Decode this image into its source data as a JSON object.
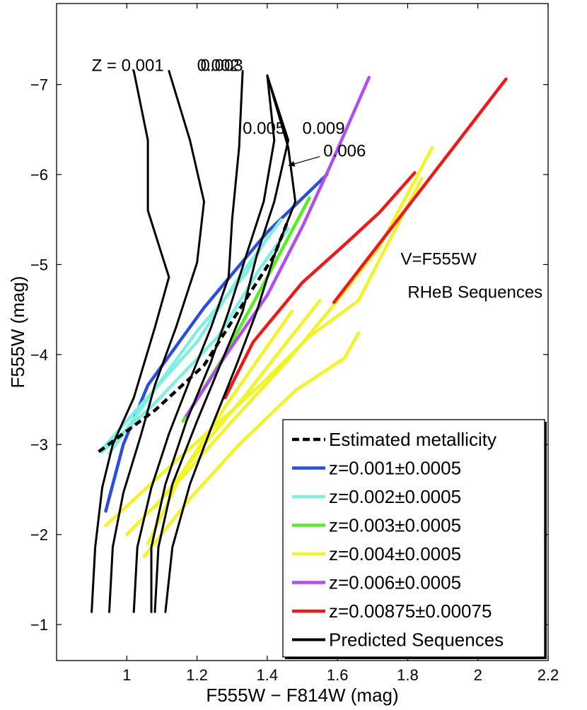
{
  "chart_data": {
    "type": "line",
    "title": "",
    "xlabel": "F555W − F814W (mag)",
    "ylabel": "F555W (mag)",
    "xlim": [
      0.8,
      2.2
    ],
    "ylim": [
      -0.6,
      -7.9
    ],
    "y_reversed": true,
    "grid": false,
    "x_ticks": [
      1,
      1.2,
      1.4,
      1.6,
      1.8,
      2,
      2.2
    ],
    "x_tick_labels": [
      "1",
      "1.2",
      "1.4",
      "1.6",
      "1.8",
      "2",
      "2.2"
    ],
    "y_ticks": [
      -1,
      -2,
      -3,
      -4,
      -5,
      -6,
      -7
    ],
    "y_tick_labels": [
      "−1",
      "−2",
      "−3",
      "−4",
      "−5",
      "−6",
      "−7"
    ],
    "legend_position": "bottom-right",
    "annotations": [
      {
        "text": "Z = 0.001",
        "x": 0.9,
        "y": -7.15
      },
      {
        "text": "0.002",
        "x": 1.2,
        "y": -7.15
      },
      {
        "text": "0.003",
        "x": 1.21,
        "y": -7.15
      },
      {
        "text": "0.005",
        "x": 1.33,
        "y": -6.45
      },
      {
        "text": "0.009",
        "x": 1.5,
        "y": -6.45
      },
      {
        "text": "0.006",
        "x": 1.56,
        "y": -6.2
      },
      {
        "text": "V=F555W",
        "x": 1.78,
        "y": -5.0
      },
      {
        "text": "RHeB Sequences",
        "x": 1.8,
        "y": -4.63
      }
    ],
    "arrow": {
      "from": [
        1.55,
        -6.2
      ],
      "to": [
        1.46,
        -6.1
      ]
    },
    "series": [
      {
        "name": "Z = 0.001",
        "role": "predicted",
        "color": "#000000",
        "dash": "solid",
        "show_in_legend": false,
        "points": [
          [
            0.9,
            -1.14
          ],
          [
            0.91,
            -1.86
          ],
          [
            0.93,
            -2.52
          ],
          [
            0.96,
            -3.0
          ],
          [
            1.02,
            -3.52
          ],
          [
            1.08,
            -4.3
          ],
          [
            1.12,
            -4.86
          ],
          [
            1.06,
            -5.6
          ],
          [
            1.06,
            -6.38
          ],
          [
            1.02,
            -7.15
          ]
        ]
      },
      {
        "name": "Z = 0.002",
        "role": "predicted",
        "color": "#000000",
        "dash": "solid",
        "show_in_legend": false,
        "points": [
          [
            0.95,
            -1.14
          ],
          [
            0.96,
            -1.86
          ],
          [
            0.99,
            -2.46
          ],
          [
            1.04,
            -3.1
          ],
          [
            1.08,
            -3.66
          ],
          [
            1.14,
            -4.3
          ],
          [
            1.2,
            -5.02
          ],
          [
            1.22,
            -5.7
          ],
          [
            1.18,
            -6.38
          ],
          [
            1.12,
            -7.15
          ]
        ]
      },
      {
        "name": "Z = 0.003",
        "role": "predicted",
        "color": "#000000",
        "dash": "solid",
        "show_in_legend": false,
        "points": [
          [
            1.02,
            -1.14
          ],
          [
            1.03,
            -1.86
          ],
          [
            1.07,
            -2.52
          ],
          [
            1.12,
            -3.12
          ],
          [
            1.18,
            -3.72
          ],
          [
            1.24,
            -4.3
          ],
          [
            1.29,
            -4.86
          ],
          [
            1.3,
            -5.5
          ],
          [
            1.32,
            -6.3
          ],
          [
            1.33,
            -7.15
          ]
        ]
      },
      {
        "name": "Z = 0.005",
        "role": "predicted",
        "color": "#000000",
        "dash": "solid",
        "show_in_legend": false,
        "points": [
          [
            1.07,
            -1.14
          ],
          [
            1.07,
            -1.86
          ],
          [
            1.11,
            -2.56
          ],
          [
            1.17,
            -3.26
          ],
          [
            1.24,
            -3.92
          ],
          [
            1.29,
            -4.48
          ],
          [
            1.34,
            -5.1
          ],
          [
            1.39,
            -5.7
          ],
          [
            1.42,
            -6.38
          ],
          [
            1.4,
            -7.1
          ]
        ]
      },
      {
        "name": "Z = 0.006",
        "role": "predicted",
        "color": "#000000",
        "dash": "solid",
        "show_in_legend": false,
        "points": [
          [
            1.08,
            -1.14
          ],
          [
            1.09,
            -1.86
          ],
          [
            1.13,
            -2.56
          ],
          [
            1.2,
            -3.26
          ],
          [
            1.27,
            -3.92
          ],
          [
            1.33,
            -4.48
          ],
          [
            1.37,
            -5.1
          ],
          [
            1.42,
            -5.7
          ],
          [
            1.46,
            -6.38
          ],
          [
            1.4,
            -7.1
          ]
        ]
      },
      {
        "name": "Z = 0.009",
        "role": "predicted",
        "color": "#000000",
        "dash": "solid",
        "show_in_legend": false,
        "points": [
          [
            1.11,
            -1.14
          ],
          [
            1.13,
            -1.86
          ],
          [
            1.18,
            -2.56
          ],
          [
            1.24,
            -3.18
          ],
          [
            1.31,
            -3.86
          ],
          [
            1.37,
            -4.48
          ],
          [
            1.42,
            -5.1
          ],
          [
            1.48,
            -5.7
          ],
          [
            1.46,
            -6.3
          ],
          [
            1.4,
            -7.1
          ]
        ]
      },
      {
        "name": "Estimated metallicity",
        "role": "estimated",
        "color": "#000000",
        "dash": "dashed",
        "show_in_legend": true,
        "points": [
          [
            0.92,
            -2.92
          ],
          [
            1.08,
            -3.38
          ],
          [
            1.22,
            -3.88
          ],
          [
            1.34,
            -4.62
          ],
          [
            1.42,
            -5.1
          ],
          [
            1.46,
            -5.5
          ]
        ]
      },
      {
        "name": "z=0.001±0.0005",
        "role": "observed",
        "color": "#2a4de0",
        "dash": "solid",
        "show_in_legend": true,
        "points": [
          [
            0.94,
            -2.26
          ],
          [
            0.99,
            -3.0
          ],
          [
            1.06,
            -3.66
          ],
          [
            1.22,
            -4.52
          ],
          [
            1.4,
            -5.36
          ],
          [
            1.57,
            -6.0
          ]
        ]
      },
      {
        "name": "z=0.002±0.0005",
        "role": "observed",
        "color": "#7ef0e0",
        "dash": "solid",
        "show_in_legend": true,
        "points": [
          [
            0.93,
            -2.95
          ],
          [
            1.04,
            -3.44
          ],
          [
            1.2,
            -4.14
          ],
          [
            1.32,
            -4.86
          ],
          [
            1.44,
            -5.5
          ]
        ]
      },
      {
        "name": "z=0.002±0.0005 (2)",
        "role": "observed",
        "color": "#7ef0e0",
        "dash": "solid",
        "show_in_legend": false,
        "points": [
          [
            0.93,
            -2.92
          ],
          [
            1.08,
            -3.46
          ],
          [
            1.26,
            -4.2
          ],
          [
            1.38,
            -4.96
          ],
          [
            1.46,
            -5.4
          ]
        ]
      },
      {
        "name": "z=0.002±0.0005 (3)",
        "role": "observed",
        "color": "#7ef0e0",
        "dash": "solid",
        "show_in_legend": false,
        "points": [
          [
            0.95,
            -2.9
          ],
          [
            1.07,
            -3.56
          ],
          [
            1.2,
            -4.26
          ],
          [
            1.34,
            -4.9
          ],
          [
            1.4,
            -5.3
          ]
        ]
      },
      {
        "name": "z=0.003±0.0005",
        "role": "observed",
        "color": "#55ee1e",
        "dash": "solid",
        "show_in_legend": true,
        "points": [
          [
            1.16,
            -3.26
          ],
          [
            1.28,
            -4.0
          ],
          [
            1.4,
            -4.86
          ],
          [
            1.52,
            -5.74
          ]
        ]
      },
      {
        "name": "z=0.004±0.0005",
        "role": "observed",
        "color": "#f2f524",
        "dash": "solid",
        "show_in_legend": true,
        "points": [
          [
            0.94,
            -2.1
          ],
          [
            1.14,
            -2.82
          ],
          [
            1.38,
            -3.66
          ],
          [
            1.52,
            -4.2
          ],
          [
            1.66,
            -4.6
          ],
          [
            1.84,
            -5.96
          ]
        ]
      },
      {
        "name": "z=0.004±0.0005 (2)",
        "role": "observed",
        "color": "#f2f524",
        "dash": "solid",
        "show_in_legend": false,
        "points": [
          [
            1.0,
            -2.0
          ],
          [
            1.14,
            -2.56
          ],
          [
            1.3,
            -3.26
          ],
          [
            1.46,
            -3.94
          ],
          [
            1.6,
            -4.6
          ],
          [
            1.72,
            -5.2
          ],
          [
            1.87,
            -6.3
          ]
        ]
      },
      {
        "name": "z=0.004±0.0005 (3)",
        "role": "observed",
        "color": "#f2f524",
        "dash": "solid",
        "show_in_legend": false,
        "points": [
          [
            1.05,
            -1.76
          ],
          [
            1.18,
            -2.4
          ],
          [
            1.32,
            -3.0
          ],
          [
            1.48,
            -3.6
          ],
          [
            1.62,
            -3.96
          ],
          [
            1.66,
            -4.24
          ]
        ]
      },
      {
        "name": "z=0.004±0.0005 (4)",
        "role": "observed",
        "color": "#f2f524",
        "dash": "solid",
        "show_in_legend": false,
        "points": [
          [
            1.06,
            -1.9
          ],
          [
            1.16,
            -2.7
          ],
          [
            1.28,
            -3.42
          ],
          [
            1.38,
            -3.98
          ],
          [
            1.47,
            -4.48
          ]
        ]
      },
      {
        "name": "z=0.004±0.0005 (5)",
        "role": "observed",
        "color": "#f2f524",
        "dash": "solid",
        "show_in_legend": false,
        "points": [
          [
            1.08,
            -2.3
          ],
          [
            1.22,
            -3.0
          ],
          [
            1.34,
            -3.56
          ],
          [
            1.44,
            -4.06
          ],
          [
            1.55,
            -4.6
          ]
        ]
      },
      {
        "name": "z=0.006±0.0005",
        "role": "observed",
        "color": "#b04ef0",
        "dash": "solid",
        "show_in_legend": true,
        "points": [
          [
            1.17,
            -3.32
          ],
          [
            1.28,
            -3.98
          ],
          [
            1.4,
            -4.66
          ],
          [
            1.5,
            -5.42
          ],
          [
            1.58,
            -6.1
          ],
          [
            1.69,
            -7.08
          ]
        ]
      },
      {
        "name": "z=0.00875±0.00075",
        "role": "observed",
        "color": "#f01818",
        "dash": "solid",
        "show_in_legend": true,
        "points": [
          [
            1.28,
            -3.52
          ],
          [
            1.36,
            -4.14
          ],
          [
            1.5,
            -4.8
          ],
          [
            1.62,
            -5.22
          ],
          [
            1.72,
            -5.58
          ],
          [
            1.82,
            -6.02
          ]
        ]
      },
      {
        "name": "z=0.00875±0.00075 (2)",
        "role": "observed",
        "color": "#f01818",
        "dash": "solid",
        "show_in_legend": false,
        "points": [
          [
            1.59,
            -4.58
          ],
          [
            1.8,
            -5.64
          ],
          [
            2.08,
            -7.06
          ]
        ]
      },
      {
        "name": "Predicted Sequences",
        "role": "legend-only",
        "color": "#000000",
        "dash": "solid",
        "show_in_legend": true,
        "points": []
      }
    ]
  }
}
